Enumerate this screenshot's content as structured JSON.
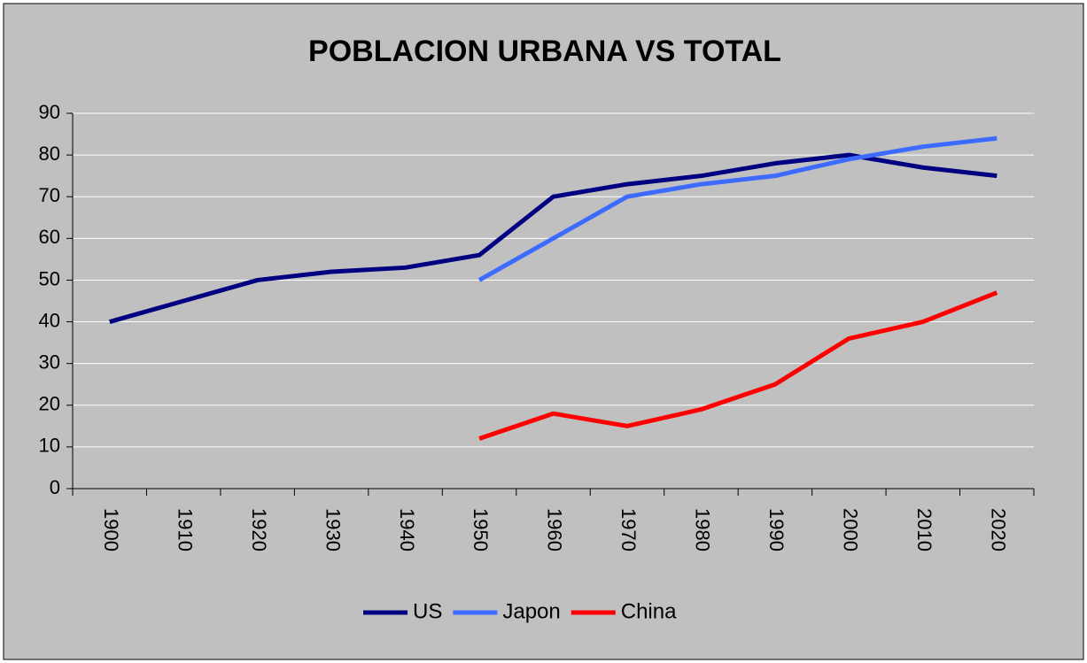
{
  "chart_data": {
    "type": "line",
    "title": "POBLACION URBANA VS TOTAL",
    "categories": [
      "1900",
      "1910",
      "1920",
      "1930",
      "1940",
      "1950",
      "1960",
      "1970",
      "1980",
      "1990",
      "2000",
      "2010",
      "2020"
    ],
    "series": [
      {
        "name": "US",
        "color": "#000080",
        "values": [
          40,
          45,
          50,
          52,
          53,
          56,
          70,
          73,
          75,
          78,
          80,
          77,
          75
        ]
      },
      {
        "name": "Japon",
        "color": "#3d6bff",
        "values": [
          null,
          null,
          null,
          null,
          null,
          50,
          60,
          70,
          73,
          75,
          79,
          82,
          84
        ]
      },
      {
        "name": "China",
        "color": "#ff0000",
        "values": [
          null,
          null,
          null,
          null,
          null,
          12,
          18,
          15,
          19,
          25,
          36,
          40,
          47
        ]
      }
    ],
    "ylim": [
      0,
      90
    ],
    "yticks": [
      0,
      10,
      20,
      30,
      40,
      50,
      60,
      70,
      80,
      90
    ],
    "grid": true,
    "legend": "bottom"
  }
}
